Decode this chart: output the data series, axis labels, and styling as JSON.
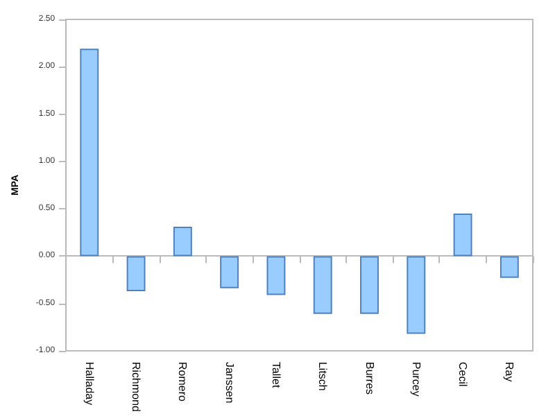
{
  "chart_data": {
    "type": "bar",
    "ylabel": "MPA",
    "categories": [
      "Halladay",
      "Richmond",
      "Romero",
      "Janssen",
      "Tallet",
      "Litsch",
      "Burres",
      "Purcey",
      "Cecil",
      "Ray"
    ],
    "values": [
      2.19,
      -0.37,
      0.31,
      -0.34,
      -0.41,
      -0.61,
      -0.61,
      -0.82,
      0.45,
      -0.23
    ],
    "color": "#99ccff",
    "ylim": [
      -1,
      2.5
    ],
    "yticks": [
      {
        "value": -1,
        "label": "-1.00"
      },
      {
        "value": -0.5,
        "label": "-0.50"
      },
      {
        "value": 0,
        "label": "0.00"
      },
      {
        "value": 0.5,
        "label": "0.50"
      },
      {
        "value": 1,
        "label": "1.00"
      },
      {
        "value": 1.5,
        "label": "1.50"
      },
      {
        "value": 2,
        "label": "2.00"
      },
      {
        "value": 2.5,
        "label": "2.50"
      }
    ]
  }
}
